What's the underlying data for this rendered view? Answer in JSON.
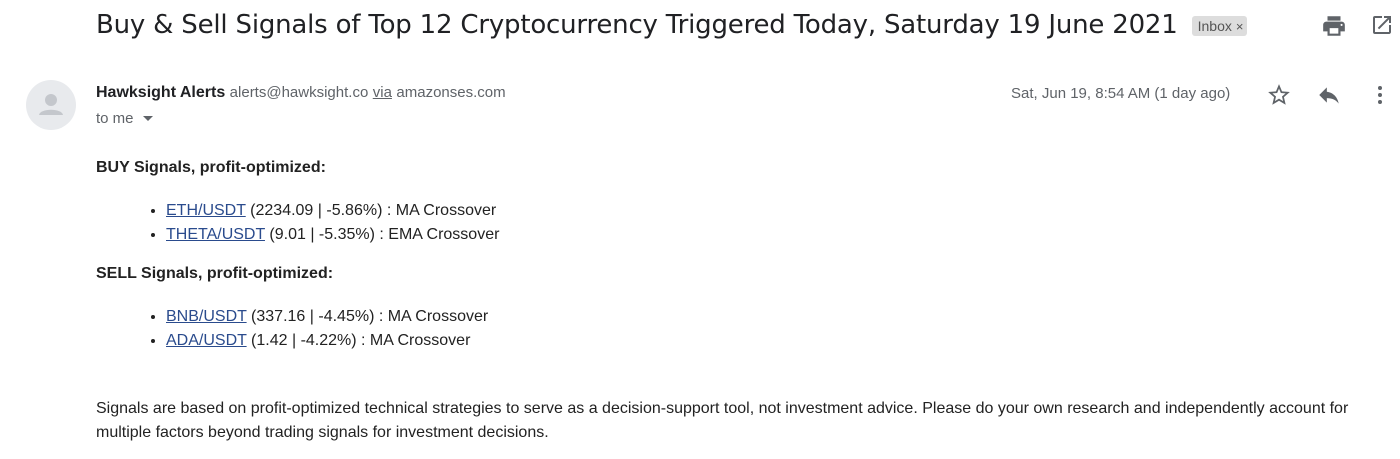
{
  "email": {
    "subject": "Buy & Sell Signals of Top 12 Cryptocurrency Triggered Today, Saturday 19 June 2021",
    "label": "Inbox",
    "label_remove": "×",
    "sender_name": "Hawksight Alerts",
    "sender_email": "alerts@hawksight.co",
    "via_text": "via",
    "via_domain": "amazonses.com",
    "recipient": "to me",
    "timestamp": "Sat, Jun 19, 8:54 AM (1 day ago)"
  },
  "icons": {
    "print": "print-icon",
    "popout": "open-in-new-window-icon",
    "star": "star-icon",
    "reply": "reply-icon",
    "more": "more-vertical-icon",
    "avatar": "default-avatar-icon"
  },
  "body": {
    "buy_heading": "BUY Signals, profit-optimized:",
    "buy_signals": [
      {
        "pair": "ETH/USDT",
        "details": " (2234.09 | -5.86%) : MA Crossover"
      },
      {
        "pair": "THETA/USDT",
        "details": " (9.01 | -5.35%) : EMA Crossover"
      }
    ],
    "sell_heading": "SELL Signals, profit-optimized:",
    "sell_signals": [
      {
        "pair": "BNB/USDT",
        "details": " (337.16 | -4.45%) : MA Crossover"
      },
      {
        "pair": "ADA/USDT",
        "details": " (1.42 | -4.22%) : MA Crossover"
      }
    ],
    "disclaimer": "Signals are based on profit-optimized technical strategies to serve as a decision-support tool, not investment advice. Please do your own research and independently account for multiple factors beyond trading signals for investment decisions."
  },
  "colors": {
    "link": "#2a4b8d",
    "label_chip_bg": "#dddddd",
    "secondary_text": "#5f6368"
  }
}
